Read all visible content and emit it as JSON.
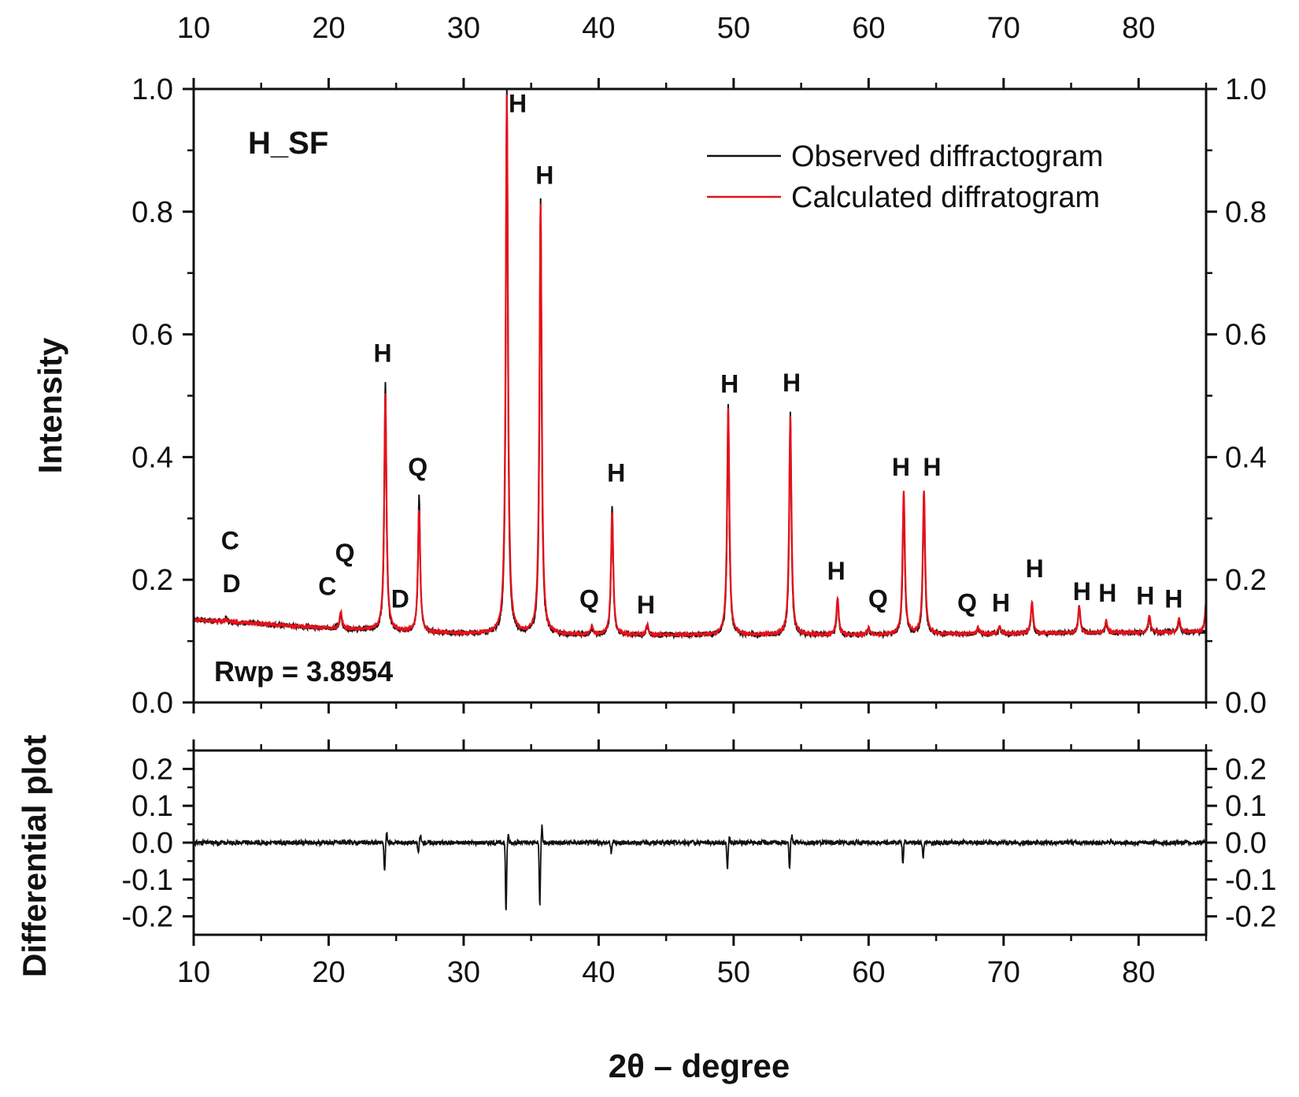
{
  "chart_data": [
    {
      "type": "line",
      "panel": "main",
      "title": "",
      "sample_label": "H_SF",
      "fit_note": "Rwp = 3.8954",
      "xlabel": "2θ – degree",
      "ylabel": "Intensity",
      "xlim": [
        10,
        85
      ],
      "ylim": [
        0.0,
        1.0
      ],
      "x_ticks": [
        "10",
        "20",
        "30",
        "40",
        "50",
        "60",
        "70",
        "80"
      ],
      "y_ticks": [
        "0.0",
        "0.2",
        "0.4",
        "0.6",
        "0.8",
        "1.0"
      ],
      "baseline": {
        "x": [
          10,
          15,
          20,
          25,
          30,
          40,
          50,
          60,
          70,
          85
        ],
        "y": [
          0.135,
          0.128,
          0.121,
          0.116,
          0.112,
          0.11,
          0.11,
          0.11,
          0.112,
          0.115
        ]
      },
      "series": [
        {
          "name": "Observed diffractogram",
          "color": "#111111",
          "peaks": [
            {
              "x": 12.4,
              "y": 0.138
            },
            {
              "x": 20.9,
              "y": 0.145
            },
            {
              "x": 24.2,
              "y": 0.52
            },
            {
              "x": 26.7,
              "y": 0.335
            },
            {
              "x": 33.2,
              "y": 1.0
            },
            {
              "x": 35.7,
              "y": 0.82
            },
            {
              "x": 39.5,
              "y": 0.122
            },
            {
              "x": 41.0,
              "y": 0.32
            },
            {
              "x": 43.6,
              "y": 0.125
            },
            {
              "x": 49.6,
              "y": 0.485
            },
            {
              "x": 54.2,
              "y": 0.47
            },
            {
              "x": 57.7,
              "y": 0.168
            },
            {
              "x": 60.0,
              "y": 0.12
            },
            {
              "x": 62.6,
              "y": 0.34
            },
            {
              "x": 64.1,
              "y": 0.34
            },
            {
              "x": 68.1,
              "y": 0.12
            },
            {
              "x": 69.7,
              "y": 0.123
            },
            {
              "x": 72.1,
              "y": 0.162
            },
            {
              "x": 75.6,
              "y": 0.155
            },
            {
              "x": 77.6,
              "y": 0.13
            },
            {
              "x": 80.8,
              "y": 0.14
            },
            {
              "x": 83.0,
              "y": 0.135
            }
          ]
        },
        {
          "name": "Calculated diffratogram",
          "color": "#e8101a",
          "peaks": [
            {
              "x": 12.4,
              "y": 0.136
            },
            {
              "x": 20.9,
              "y": 0.148
            },
            {
              "x": 24.2,
              "y": 0.505
            },
            {
              "x": 26.7,
              "y": 0.315
            },
            {
              "x": 33.2,
              "y": 0.99
            },
            {
              "x": 35.7,
              "y": 0.81
            },
            {
              "x": 39.5,
              "y": 0.124
            },
            {
              "x": 41.0,
              "y": 0.31
            },
            {
              "x": 43.6,
              "y": 0.127
            },
            {
              "x": 49.6,
              "y": 0.48
            },
            {
              "x": 54.2,
              "y": 0.465
            },
            {
              "x": 57.7,
              "y": 0.17
            },
            {
              "x": 60.0,
              "y": 0.122
            },
            {
              "x": 62.6,
              "y": 0.345
            },
            {
              "x": 64.1,
              "y": 0.345
            },
            {
              "x": 68.1,
              "y": 0.122
            },
            {
              "x": 69.7,
              "y": 0.125
            },
            {
              "x": 72.1,
              "y": 0.165
            },
            {
              "x": 75.6,
              "y": 0.157
            },
            {
              "x": 77.6,
              "y": 0.132
            },
            {
              "x": 80.8,
              "y": 0.142
            },
            {
              "x": 83.0,
              "y": 0.138
            },
            {
              "x": 85.0,
              "y": 0.165
            }
          ]
        }
      ],
      "annotations": [
        {
          "text": "C",
          "x": 12.7,
          "y": 0.25
        },
        {
          "text": "D",
          "x": 12.8,
          "y": 0.18
        },
        {
          "text": "C",
          "x": 19.9,
          "y": 0.175
        },
        {
          "text": "Q",
          "x": 21.2,
          "y": 0.23
        },
        {
          "text": "H",
          "x": 24.0,
          "y": 0.555
        },
        {
          "text": "D",
          "x": 25.3,
          "y": 0.155
        },
        {
          "text": "Q",
          "x": 26.6,
          "y": 0.37
        },
        {
          "text": "H",
          "x": 34.0,
          "y": 0.962
        },
        {
          "text": "H",
          "x": 36.0,
          "y": 0.845
        },
        {
          "text": "Q",
          "x": 39.3,
          "y": 0.155
        },
        {
          "text": "H",
          "x": 41.3,
          "y": 0.36
        },
        {
          "text": "H",
          "x": 43.5,
          "y": 0.145
        },
        {
          "text": "H",
          "x": 49.7,
          "y": 0.505
        },
        {
          "text": "H",
          "x": 54.3,
          "y": 0.507
        },
        {
          "text": "H",
          "x": 57.6,
          "y": 0.2
        },
        {
          "text": "Q",
          "x": 60.7,
          "y": 0.155
        },
        {
          "text": "H",
          "x": 62.4,
          "y": 0.37
        },
        {
          "text": "H",
          "x": 64.7,
          "y": 0.37
        },
        {
          "text": "Q",
          "x": 67.3,
          "y": 0.148
        },
        {
          "text": "H",
          "x": 69.8,
          "y": 0.148
        },
        {
          "text": "H",
          "x": 72.3,
          "y": 0.204
        },
        {
          "text": "H",
          "x": 75.8,
          "y": 0.167
        },
        {
          "text": "H",
          "x": 77.7,
          "y": 0.164
        },
        {
          "text": "H",
          "x": 80.5,
          "y": 0.16
        },
        {
          "text": "H",
          "x": 82.6,
          "y": 0.155
        }
      ],
      "legend": "top-right",
      "grid": false
    },
    {
      "type": "line",
      "panel": "difference",
      "ylabel": "Differential plot",
      "xlabel": "2θ – degree",
      "xlim": [
        10,
        85
      ],
      "ylim": [
        -0.25,
        0.25
      ],
      "x_ticks": [
        "10",
        "20",
        "30",
        "40",
        "50",
        "60",
        "70",
        "80"
      ],
      "y_ticks": [
        "-0.2",
        "-0.1",
        "0.0",
        "0.1",
        "0.2"
      ],
      "series": [
        {
          "name": "Difference",
          "color": "#111111",
          "spikes": [
            {
              "x": 24.2,
              "up": 0.025,
              "down": -0.08
            },
            {
              "x": 26.7,
              "up": 0.02,
              "down": -0.03
            },
            {
              "x": 33.2,
              "up": 0.02,
              "down": -0.19
            },
            {
              "x": 35.7,
              "up": 0.045,
              "down": -0.17
            },
            {
              "x": 41.0,
              "up": 0.005,
              "down": -0.03
            },
            {
              "x": 49.6,
              "up": 0.015,
              "down": -0.07
            },
            {
              "x": 54.2,
              "up": 0.02,
              "down": -0.07
            },
            {
              "x": 62.6,
              "up": 0.005,
              "down": -0.06
            },
            {
              "x": 64.1,
              "up": 0.005,
              "down": -0.04
            }
          ]
        }
      ]
    }
  ]
}
